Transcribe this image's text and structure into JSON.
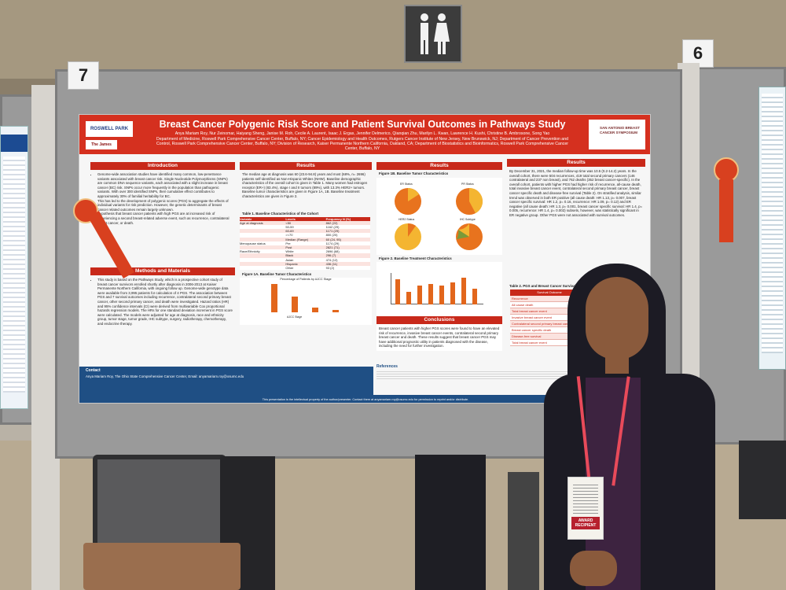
{
  "board_numbers": {
    "left": "7",
    "right": "6"
  },
  "poster": {
    "title": "Breast Cancer Polygenic Risk Score and Patient Survival Outcomes in Pathways Study",
    "authors": "Anya Mariam Roy, Nur Zeinomar, Haiyang Sheng, Janise M. Roh, Cecile A. Laurent, Isaac J. Ergas, Jennifer Delmerico, Qianqian Zhu, Marilyn L. Kwan, Lawrence H. Kushi, Christine B. Ambrosone, Song Yao",
    "affiliations": "Department of Medicine, Roswell Park Comprehensive Cancer Center, Buffalo, NY; Cancer Epidemiology and Health Outcomes, Rutgers Cancer Institute of New Jersey, New Brunswick, NJ; Department of Cancer Prevention and Control, Roswell Park Comprehensive Cancer Center, Buffalo, NY; Division of Research, Kaiser Permanente Northern California, Oakland, CA; Department of Biostatistics and Bioinformatics, Roswell Park Comprehensive Cancer Center, Buffalo, NY",
    "logo_left": "ROSWELL PARK",
    "logo_left2": "The James",
    "logo_right": "SAN ANTONIO BREAST CANCER SYMPOSIUM",
    "sections": {
      "introduction": "Introduction",
      "results": "Results",
      "methods": "Methods and Materials",
      "conclusions": "Conclusions",
      "references": "References",
      "contact": "Contact"
    },
    "intro_text": "Genome-wide association studies have identified many common, low-penetrance variants associated with breast cancer risk. Single Nucleotide Polymorphisms (SNPs) are common DNA sequence variants, each associated with a slight increase in breast cancer (BC) risk. SNPs occur more frequently in the population than pathogenic variants. With over 300 identified SNPs, their cumulative effect contributes to approximately 30% of familial heritability for BC.",
    "intro_text2": "This has led to the development of polygenic scores (PGS) to aggregate the effects of individual variants for risk prediction. However, the genetic determinants of breast cancer related outcomes remain largely unknown.",
    "intro_text3": "Hypothesis that breast cancer patients with high PGS are at increased risk of experiencing a second breast-related adverse event, such as recurrence, contralateral breast cancer, or death.",
    "methods_text": "This study is based on the Pathways Study, which is a prospective cohort study of breast cancer survivors enrolled shortly after diagnosis in 2006-2013 at Kaiser Permanente Northern California, with ongoing follow up. Genome-wide genotype data were available from 3,995 patients for calculation of 4 PGS. The association between PGS and 7 survival outcomes including recurrence, contralateral second primary breast cancer, other second primary cancer, and death were investigated. Hazard ratios (HR) and 95% confidence intervals (CI) were derived from multivariable Cox proportional hazards regression models. The HRs for one standard deviation increment in PGS score were calculated. The models were adjusted for age at diagnosis, race and ethnicity group, tumor stage, tumor grade, IHC subtype, surgery, radiotherapy, chemotherapy, and endocrine therapy.",
    "results_text": "The median age at diagnosis was 60 (23.6-94.8) years and most (68%, n= 2696) patients self-identified as Non-Hispanic Whites (NHW). Baseline demographic characteristics of the overall cohort is given in Table 1. Many women had estrogen receptor (ER+) (83.4%), stage I and II tumors (89%), with 13.3% HER2+ tumors. Baseline tumor characteristics are given in Figure 1A, 1B. Baseline treatment characteristics are given in Figure 2.",
    "results_text2": "By December 31, 2021, the median follow-up time was 10.5 (0.2-14.2) years. In the overall cohort, there were 504 recurrences, 419 total second primary cancers (146 contralateral and 237 non breast), and 762 deaths (352 breast cancer-specific). In the overall cohort, patients with higher PGS had higher risk of recurrence, all-cause death, total invasive breast cancer event, contralateral second primary breast cancer, breast cancer specific death and disease-free survival (Table 2). On stratified analysis, similar trend was observed in both ER positive (all cause death: HR 1.13, p= 0.007, breast cancer specific survival: HR 1.2, p= 0.16, recurrence: HR 1.09, p= 0.12) and ER negative (all cause death: HR 1.3, p= 0.001, breast cancer specific survival: HR 1.4, p= 0.005, recurrence: HR 1.4, p= 0.002) subsets, however, was statistically significant in ER negative group. Other PGS were not associated with survival outcomes.",
    "conclusions_text": "Breast cancer patients with higher PGS scores were found to have an elevated risk of recurrence, invasive breast cancer events, contralateral second primary breast cancer and death. These results suggest that breast cancer PGS may have additional prognostic utility in patients diagnosed with the disease, including the need for further investigation.",
    "table1_caption": "Table 1. Baseline Characteristics of the Cohort",
    "table1_headers": [
      "Variable",
      "Levels",
      "Frequency N (%)"
    ],
    "table1_rows": [
      [
        "Age at diagnosis",
        "<50",
        "862 (22)"
      ],
      [
        "",
        "50-59",
        "1162 (29)"
      ],
      [
        "",
        "60-69",
        "1171 (29)"
      ],
      [
        "",
        ">=70",
        "800 (20)"
      ],
      [
        "",
        "Median (Range)",
        "60 (24, 95)"
      ],
      [
        "Menopause status",
        "Pre",
        "1174 (29)"
      ],
      [
        "",
        "Post",
        "2821 (71)"
      ],
      [
        "Race/Ethnicity",
        "White",
        "2696 (68)"
      ],
      [
        "",
        "Black",
        "296 (7)"
      ],
      [
        "",
        "Asian",
        "474 (12)"
      ],
      [
        "",
        "Hispanic",
        "436 (11)"
      ],
      [
        "",
        "Other",
        "93 (2)"
      ]
    ],
    "fig1a_caption": "Figure 1A. Baseline Tumor Characteristics",
    "fig1a_title": "Percentage of Patients by AJCC Stage",
    "fig1a_xlabel": "AJCC Stage",
    "fig1b_caption": "Figure 1B. Baseline Tumor Characteristics",
    "fig2_caption": "Figure 2. Baseline Treatment Characteristics",
    "fig1b_labels": [
      "ER Status",
      "PR Status",
      "HER2 Status",
      "IHC Subtype"
    ],
    "table2_caption": "Table 2. PGS and Breast Cancer Survival Outcomes",
    "table2_header": "Survival Outcome",
    "table2_rows": [
      "Recurrence",
      "All cause death",
      "Total breast cancer event",
      "Invasive breast cancer event",
      "Contralateral second primary breast cancer",
      "Breast cancer specific death",
      "Disease-free survival",
      "Total breast cancer event"
    ],
    "contact_text": "Anya Mariam Roy, The Ohio State Comprehensive Cancer Center, Email: anyamariam.roy@osumc.edu",
    "footer_note": "This presentation is the intellectual property of the author/presenter. Contact them at anyamariam.roy@osumc.edu for permission to reprint and/or distribute."
  },
  "badge_text": "AWARD RECIPIENT",
  "colors": {
    "poster_red": "#d5301f",
    "poster_blue": "#1f4f84",
    "pie_orange": "#e8731e",
    "pie_yellow": "#f4b531",
    "bar_orange": "#e2661c"
  },
  "icons": [
    "restroom-sign-icon",
    "rosette-ribbon-icon"
  ]
}
